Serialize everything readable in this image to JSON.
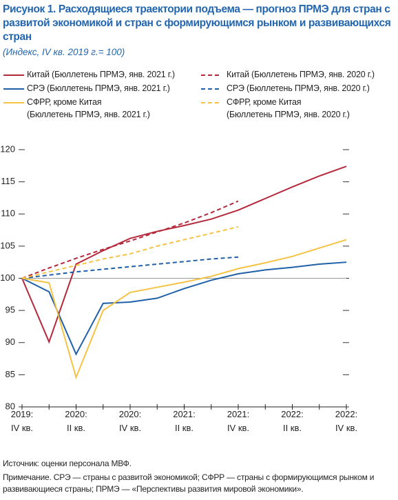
{
  "chart_data": {
    "type": "line",
    "title": "Рисунок 1. Расходящиеся траектории подъема — прогноз ПРМЭ для стран с развитой экономикой и стран с формирующимся рынком и развивающихся стран",
    "subtitle": "(Индекс, IV кв. 2019 г.= 100)",
    "categories": [
      "2019:\nIV кв.",
      null,
      "2020:\nII кв.",
      null,
      "2020:\nIV кв.",
      null,
      "2021:\nII кв.",
      null,
      "2021:\nIV кв.",
      null,
      "2022:\nII кв.",
      null,
      "2022:\nIV кв."
    ],
    "series": [
      {
        "name": "Китай (Бюллетень ПРМЭ, янв. 2021 г.)",
        "color": "#b5283b",
        "dashed": false,
        "values": [
          100,
          90.1,
          102.2,
          104.3,
          106.2,
          107.3,
          108.2,
          109.2,
          110.6,
          112.4,
          114.2,
          115.9,
          117.4
        ]
      },
      {
        "name": "Китай (Бюллетень ПРМЭ, янв. 2020 г.)",
        "color": "#b5283b",
        "dashed": true,
        "values": [
          100,
          101.6,
          103.1,
          104.5,
          105.8,
          107.2,
          108.6,
          110.2,
          112.0,
          null,
          null,
          null,
          null
        ]
      },
      {
        "name": "СРЭ (Бюллетень ПРМЭ, янв. 2021 г.)",
        "color": "#1f5fa8",
        "dashed": false,
        "values": [
          100,
          97.9,
          88.2,
          96.1,
          96.3,
          96.9,
          98.4,
          99.7,
          100.7,
          101.3,
          101.7,
          102.2,
          102.5
        ]
      },
      {
        "name": "СРЭ (Бюллетень ПРМЭ, янв. 2020 г.)",
        "color": "#1f5fa8",
        "dashed": true,
        "values": [
          100,
          100.5,
          101.0,
          101.4,
          101.8,
          102.2,
          102.6,
          103.0,
          103.3,
          null,
          null,
          null,
          null
        ]
      },
      {
        "name": "СФРР, кроме Китая\n(Бюллетень ПРМЭ, янв. 2021 г.)",
        "color": "#f5c242",
        "dashed": false,
        "values": [
          100,
          99.3,
          84.6,
          95.0,
          97.8,
          98.6,
          99.4,
          100.3,
          101.5,
          102.4,
          103.4,
          104.7,
          106.0
        ]
      },
      {
        "name": "СФРР, кроме Китая\n(Бюллетень ПРМЭ, янв. 2020 г.)",
        "color": "#f5c242",
        "dashed": true,
        "values": [
          100,
          101.0,
          102.0,
          103.0,
          103.8,
          105.0,
          106.0,
          107.0,
          108.0,
          null,
          null,
          null,
          null
        ]
      }
    ],
    "ylim": [
      80,
      120
    ],
    "yticks": [
      80,
      85,
      90,
      95,
      100,
      105,
      110,
      115,
      120
    ],
    "reference_line": 100,
    "source": "Источник: оценки персонала МВФ.",
    "note": "Примечание. СРЭ — страны с развитой экономикой; СФРР — страны с формирующимся рынком и развивающиеся страны; ПРМЭ — «Перспективы развития мировой экономики»."
  }
}
